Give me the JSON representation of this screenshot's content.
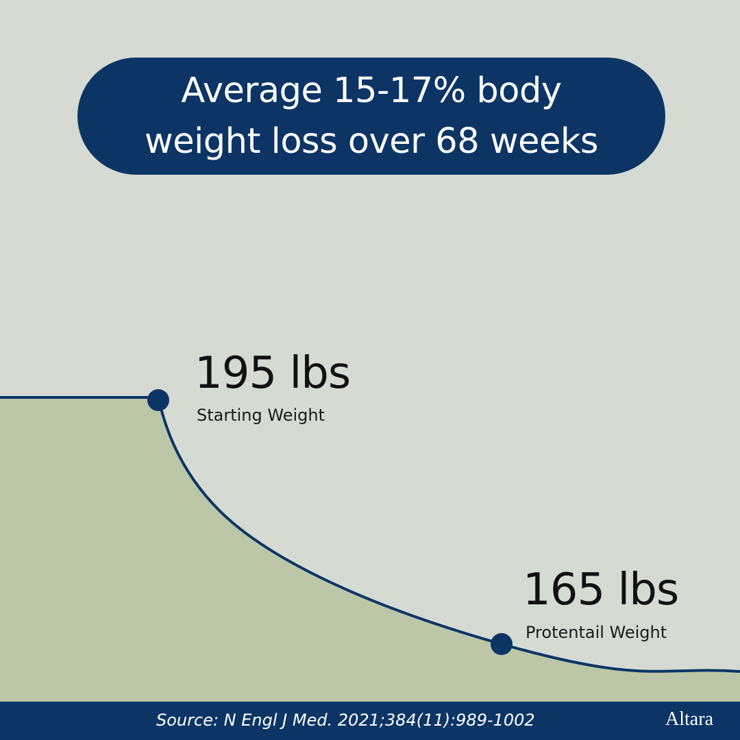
{
  "headline": {
    "line1": "Average 15-17% body",
    "line2": "weight loss over 68 weeks"
  },
  "chart_data": {
    "type": "area",
    "title": "Average 15-17% body weight loss over 68 weeks",
    "points": [
      {
        "value_label": "195 lbs",
        "caption": "Starting Weight",
        "weight": 195
      },
      {
        "value_label": "165 lbs",
        "caption": "Protentail Weight",
        "weight": 165
      }
    ],
    "grid": false,
    "colors": {
      "line": "#0c3566",
      "fill": "#bbc7a6",
      "marker": "#0c3566"
    }
  },
  "footer": {
    "source": "Source: N Engl J Med. 2021;384(11):989-1002",
    "brand": "Altara"
  },
  "colors": {
    "background": "#d5dbd3",
    "navy": "#0c3566",
    "fill": "#bbc7a6"
  }
}
